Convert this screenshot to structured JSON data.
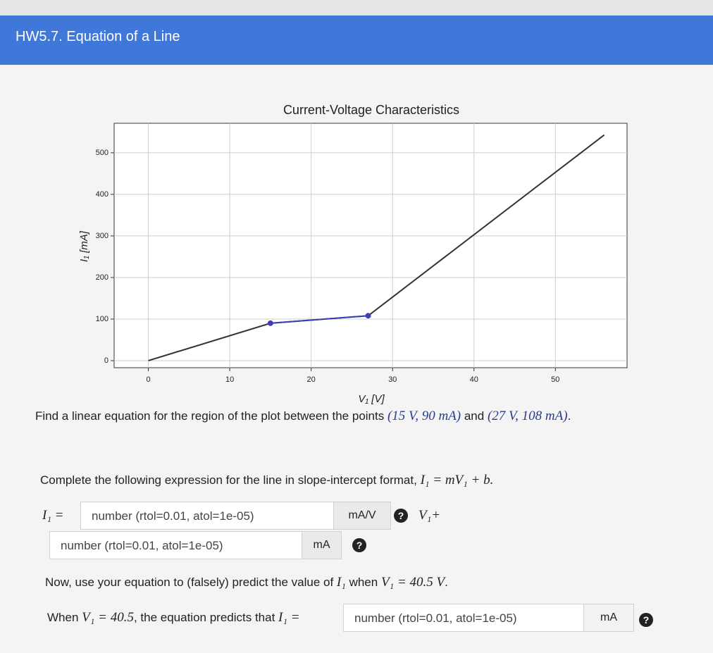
{
  "header": {
    "title": "HW5.7. Equation of a Line"
  },
  "chart_data": {
    "type": "line",
    "title": "Current-Voltage Characteristics",
    "xlabel": "V₁ [V]",
    "ylabel": "I₁ [mA]",
    "x": [
      0,
      15,
      27,
      56
    ],
    "series": [
      {
        "color": "#333333",
        "values": [
          0,
          90,
          108,
          543
        ],
        "markers": false
      },
      {
        "color": "#3f3fb8",
        "values": [
          null,
          90,
          108,
          null
        ],
        "markers": true
      }
    ],
    "xlim": [
      -4.2,
      58.8
    ],
    "ylim": [
      -17,
      571
    ],
    "xticks": [
      0,
      10,
      20,
      30,
      40,
      50
    ],
    "yticks": [
      0,
      100,
      200,
      300,
      400,
      500
    ],
    "grid": true
  },
  "question": [
    "Find a linear equation for the region of the plot between the points",
    "(15 V, 90 mA)",
    "and",
    "(27 V, 108 mA)",
    "."
  ],
  "instruction": [
    "Complete the following expression for the line in slope-intercept format,",
    "I₁ = mV₁ + b."
  ],
  "inputs": [
    {
      "prefix": "I₁ =",
      "placeholder": "number (rtol=0.01, atol=1e-05)",
      "unit": "mA/V",
      "help": "?",
      "suffix": "V₁+"
    },
    {
      "placeholder": "number (rtol=0.01, atol=1e-05)",
      "unit": "mA",
      "help": "?"
    }
  ],
  "prediction": [
    "Now, use your equation to (falsely) predict the value of",
    "I₁",
    "when",
    "V₁ = 40.5 V",
    "."
  ],
  "answer": {
    "parts": [
      "When",
      "V₁ = 40.5",
      ", the equation predicts that",
      "I₁ ="
    ],
    "placeholder": "number (rtol=0.01, atol=1e-05)",
    "unit": "mA",
    "help": "?"
  }
}
